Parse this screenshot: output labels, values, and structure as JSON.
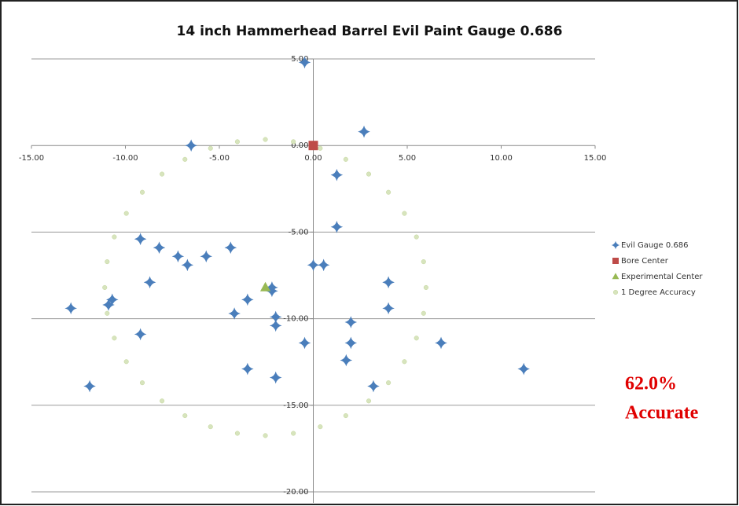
{
  "chart_data": {
    "type": "scatter",
    "title": "14 inch Hammerhead Barrel Evil Paint Gauge 0.686",
    "xlim": [
      -15,
      15
    ],
    "ylim": [
      -20,
      5
    ],
    "xticks": [
      {
        "value": -15,
        "label": "-15.00"
      },
      {
        "value": -10,
        "label": "-10.00"
      },
      {
        "value": -5,
        "label": "-5.00"
      },
      {
        "value": 0,
        "label": "0.00"
      },
      {
        "value": 5,
        "label": "5.00"
      },
      {
        "value": 10,
        "label": "10.00"
      },
      {
        "value": 15,
        "label": "15.00"
      }
    ],
    "yticks": [
      {
        "value": 5,
        "label": "5.00"
      },
      {
        "value": 0,
        "label": "0.00"
      },
      {
        "value": -5,
        "label": "-5.00"
      },
      {
        "value": -10,
        "label": "-10.00"
      },
      {
        "value": -15,
        "label": "-15.00"
      },
      {
        "value": -20,
        "label": "-20.00"
      }
    ],
    "grid": true,
    "legend": "right",
    "annotation": [
      "62.0%",
      "Accurate"
    ],
    "series": [
      {
        "name": "Evil Gauge 0.686",
        "color": "#4a7ebb",
        "marker": "diamond",
        "x": [
          -0.46,
          -6.5,
          2.7,
          1.25,
          1.25,
          -9.2,
          -8.2,
          -7.2,
          -6.7,
          -5.7,
          -4.4,
          0,
          0.55,
          4.0,
          -8.7,
          -2.2,
          -2.2,
          -3.5,
          -10.7,
          -10.9,
          -12.9,
          -4.2,
          -2.0,
          -2.0,
          4.0,
          2.0,
          -9.2,
          -0.46,
          2.0,
          6.8,
          1.75,
          -3.5,
          -2.0,
          11.2,
          -11.9,
          3.2
        ],
        "values": [
          4.8,
          0,
          0.8,
          -1.7,
          -4.7,
          -5.4,
          -5.9,
          -6.4,
          -6.9,
          -6.4,
          -5.9,
          -6.9,
          -6.9,
          -7.9,
          -7.9,
          -8.2,
          -8.4,
          -8.9,
          -8.9,
          -9.2,
          -9.4,
          -9.7,
          -9.9,
          -10.4,
          -9.4,
          -10.2,
          -10.9,
          -11.4,
          -11.4,
          -11.4,
          -12.4,
          -12.9,
          -13.4,
          -12.9,
          -13.9,
          -13.9
        ]
      },
      {
        "name": "Bore Center",
        "color": "#be4b48",
        "marker": "square",
        "x": [
          0
        ],
        "values": [
          0
        ]
      },
      {
        "name": "Experimental Center",
        "color": "#98b954",
        "marker": "triangle",
        "x": [
          -2.55
        ],
        "values": [
          -8.2
        ]
      },
      {
        "name": "1 Degree Accuracy",
        "color": "#d7e4bd",
        "marker": "circle",
        "x": [
          6.0,
          5.87,
          5.49,
          4.85,
          4.0,
          2.95,
          1.73,
          0.37,
          -1.06,
          -2.55,
          -4.04,
          -5.47,
          -6.83,
          -8.05,
          -9.1,
          -9.95,
          -10.59,
          -10.97,
          -11.1,
          -10.97,
          -10.59,
          -9.95,
          -9.1,
          -8.05,
          -6.83,
          -5.47,
          -4.04,
          -2.55,
          -1.06,
          0.37,
          1.73,
          2.95,
          4.0,
          4.85,
          5.49,
          5.87
        ],
        "values": [
          -8.2,
          -6.71,
          -5.28,
          -3.92,
          -2.7,
          -1.65,
          -0.8,
          -0.16,
          0.22,
          0.35,
          0.22,
          -0.16,
          -0.8,
          -1.65,
          -2.7,
          -3.92,
          -5.28,
          -6.71,
          -8.2,
          -9.69,
          -11.12,
          -12.48,
          -13.7,
          -14.75,
          -15.6,
          -16.24,
          -16.62,
          -16.75,
          -16.62,
          -16.24,
          -15.6,
          -14.75,
          -13.7,
          -12.48,
          -11.12,
          -9.69
        ]
      }
    ]
  }
}
